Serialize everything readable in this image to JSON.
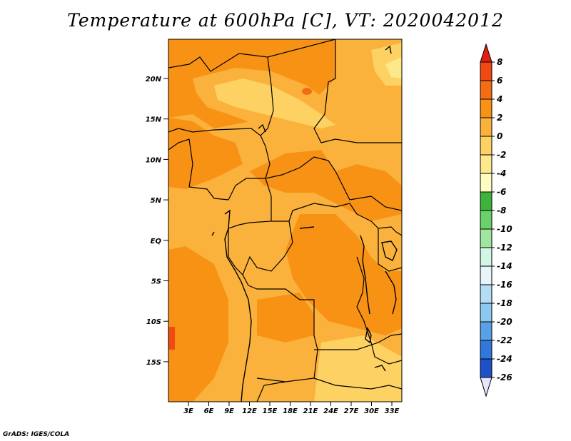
{
  "title": "Temperature at 600hPa [C], VT: 2020042012",
  "footer": "GrADS: IGES/COLA",
  "map": {
    "lat_labels": [
      "20N",
      "15N",
      "10N",
      "5N",
      "EQ",
      "5S",
      "10S",
      "15S"
    ],
    "lon_labels": [
      "3E",
      "6E",
      "9E",
      "12E",
      "15E",
      "18E",
      "21E",
      "24E",
      "27E",
      "30E",
      "33E"
    ]
  },
  "colorbar": {
    "levels": [
      "8",
      "6",
      "4",
      "2",
      "0",
      "-2",
      "-4",
      "-6",
      "-8",
      "-10",
      "-12",
      "-14",
      "-16",
      "-18",
      "-20",
      "-22",
      "-24",
      "-26"
    ],
    "colors": [
      "#e01e14",
      "#f04a12",
      "#f46d14",
      "#f79214",
      "#fbb23c",
      "#fdd262",
      "#fde98c",
      "#fefcc0",
      "#3cb43c",
      "#6ad26a",
      "#a0e6a0",
      "#d2f5e6",
      "#e6f5fa",
      "#b4dcf5",
      "#8cc8f0",
      "#5aa0e6",
      "#3278dc",
      "#1e50c8",
      "#1432a0",
      "#0a1878",
      "#e6e6fa"
    ]
  }
}
